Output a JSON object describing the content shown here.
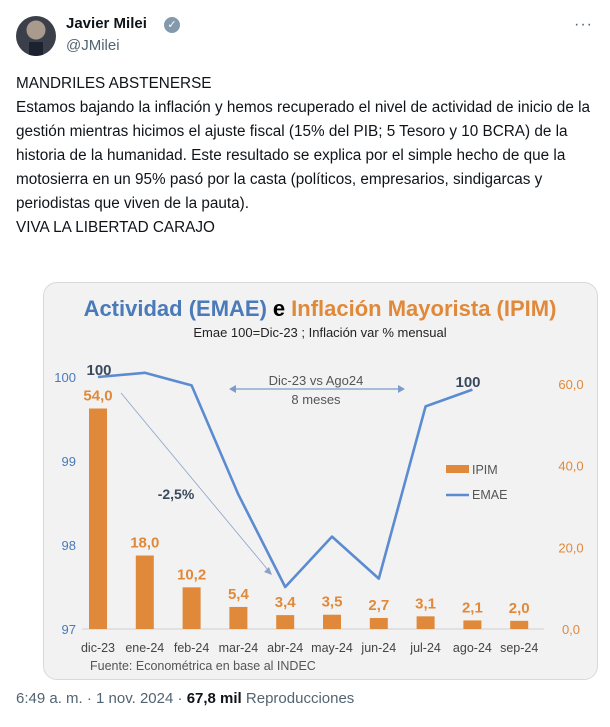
{
  "tweet": {
    "author_name": "Javier Milei",
    "handle": "@JMilei",
    "verified_icon": "verified-badge-icon",
    "more_icon": "ellipsis-icon",
    "lines": [
      "MANDRILES ABSTENERSE",
      "Estamos bajando la inflación y hemos recuperado el nivel de actividad de inicio de la gestión mientras hicimos el ajuste fiscal (15% del PIB; 5 Tesoro y 10 BCRA) de la historia de la humanidad. Este resultado se explica por el simple hecho de que la motosierra en un 95% pasó por la casta (políticos, empresarios, sindigarcas y periodistas que viven de la pauta).",
      "VIVA LA LIBERTAD CARAJO"
    ],
    "time": "6:49 a. m.",
    "sep": " · ",
    "date": "1 nov. 2024",
    "views": "67,8 mil",
    "views_label": "Reproducciones"
  },
  "chart_data": {
    "type": "bar+line",
    "title_part1": "Actividad (EMAE)",
    "title_join": "e",
    "title_part2": "Inflación Mayorista (IPIM)",
    "subtitle": "Emae 100=Dic-23 ; Inflación var % mensual",
    "categories": [
      "dic-23",
      "ene-24",
      "feb-24",
      "mar-24",
      "abr-24",
      "may-24",
      "jun-24",
      "jul-24",
      "ago-24",
      "sep-24"
    ],
    "series": [
      {
        "name": "IPIM",
        "type": "bar",
        "axis": "right",
        "color": "#e0893a",
        "values": [
          54.0,
          18.0,
          10.2,
          5.4,
          3.4,
          3.5,
          2.7,
          3.1,
          2.1,
          2.0
        ],
        "labels": [
          "54,0",
          "18,0",
          "10,2",
          "5,4",
          "3,4",
          "3,5",
          "2,7",
          "3,1",
          "2,1",
          "2,0"
        ]
      },
      {
        "name": "EMAE",
        "type": "line",
        "axis": "left",
        "color": "#5b8bd0",
        "values": [
          100.0,
          100.05,
          99.9,
          98.6,
          97.5,
          98.1,
          97.6,
          99.65,
          99.85,
          null
        ]
      }
    ],
    "left_axis": {
      "range": [
        97,
        100
      ],
      "ticks": [
        "97",
        "98",
        "99",
        "100"
      ],
      "color": "#4a7ab8"
    },
    "right_axis": {
      "range": [
        0,
        60
      ],
      "ticks": [
        "0,0",
        "20,0",
        "40,0",
        "60,0"
      ],
      "color": "#e0893a"
    },
    "annotations": {
      "start_label": "100",
      "end_label": "100",
      "span_label": "Dic-23 vs Ago24",
      "span_sub": "8 meses",
      "drop_label": "-2,5%"
    },
    "legend_position": "right",
    "source": "Fuente: Econométrica en base al INDEC",
    "title_colors": {
      "blue": "#4a7ab8",
      "orange": "#e0893a"
    }
  }
}
